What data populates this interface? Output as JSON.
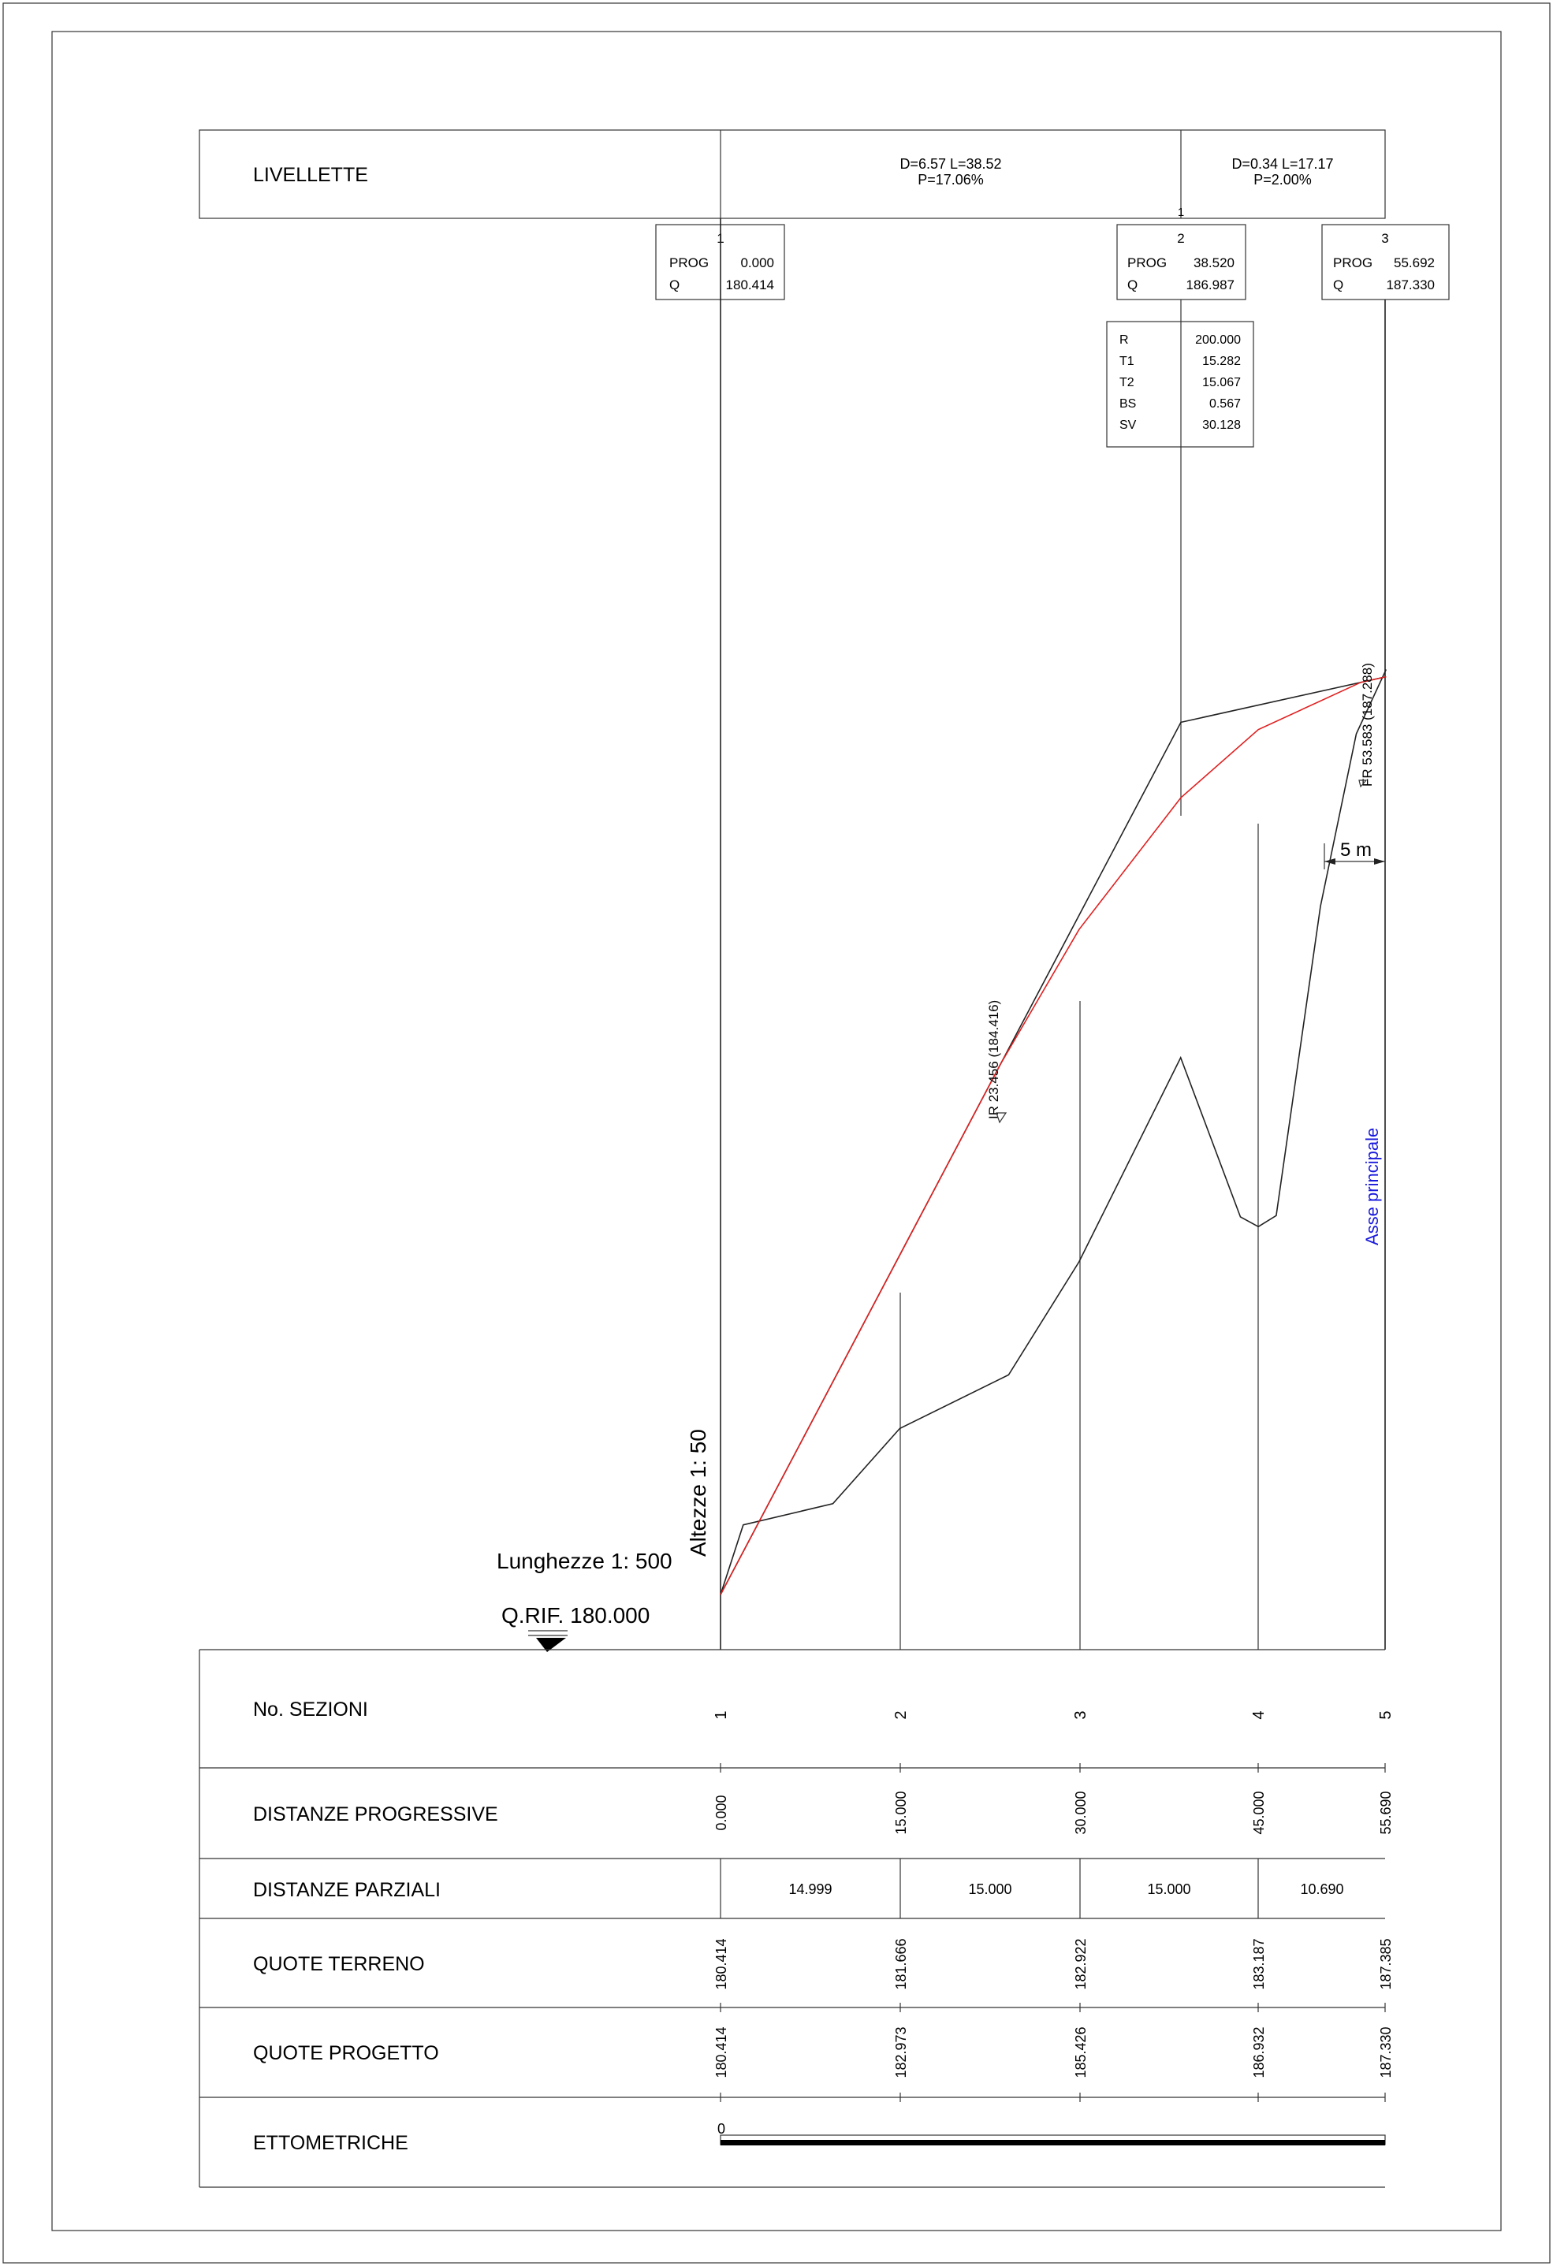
{
  "livellette": {
    "label": "LIVELLETTE",
    "segments": [
      {
        "dl": "D=6.57 L=38.52",
        "p": "P=17.06%"
      },
      {
        "dl": "D=0.34 L=17.17",
        "p": "P=2.00%"
      }
    ],
    "vertex_marker": "1"
  },
  "vertices": [
    {
      "num": "1",
      "prog_label": "PROG",
      "prog": "0.000",
      "q_label": "Q",
      "q": "180.414"
    },
    {
      "num": "2",
      "prog_label": "PROG",
      "prog": "38.520",
      "q_label": "Q",
      "q": "186.987"
    },
    {
      "num": "3",
      "prog_label": "PROG",
      "prog": "55.692",
      "q_label": "Q",
      "q": "187.330"
    }
  ],
  "curve": [
    {
      "label": "R",
      "value": "200.000"
    },
    {
      "label": "T1",
      "value": "15.282"
    },
    {
      "label": "T2",
      "value": "15.067"
    },
    {
      "label": "BS",
      "value": "0.567"
    },
    {
      "label": "SV",
      "value": "30.128"
    }
  ],
  "points": {
    "fr": "FR  53.583  (187.288)",
    "ir": "IR  23.456  (184.416)"
  },
  "scale_bar": "5 m",
  "axis_label": "Asse principale",
  "scales": {
    "heights": "Altezze 1: 50",
    "lengths": "Lunghezze 1: 500",
    "qrif": "Q.RIF. 180.000"
  },
  "table": {
    "rows": [
      {
        "label": "No. SEZIONI",
        "values": [
          "1",
          "2",
          "3",
          "4",
          "5"
        ]
      },
      {
        "label": "DISTANZE PROGRESSIVE",
        "values": [
          "0.000",
          "15.000",
          "30.000",
          "45.000",
          "55.690"
        ]
      },
      {
        "label": "DISTANZE PARZIALI",
        "values": [
          "14.999",
          "15.000",
          "15.000",
          "10.690"
        ]
      },
      {
        "label": "QUOTE TERRENO",
        "values": [
          "180.414",
          "181.666",
          "182.922",
          "183.187",
          "187.385"
        ]
      },
      {
        "label": "QUOTE PROGETTO",
        "values": [
          "180.414",
          "182.973",
          "185.426",
          "186.932",
          "187.330"
        ]
      },
      {
        "label": "ETTOMETRICHE",
        "values": [
          "0"
        ]
      }
    ]
  },
  "chart_data": {
    "type": "line",
    "xlabel": "",
    "ylabel": "",
    "x_range": [
      0,
      55.692
    ],
    "y_reference": 180.0,
    "series": [
      {
        "x": [
          0,
          1.9,
          9.4,
          15.0,
          24.1,
          30.0,
          38.5,
          43.5,
          45.0,
          46.5,
          50.2,
          53.2,
          55.69
        ],
        "y": [
          180.414,
          180.94,
          181.1,
          181.666,
          182.07,
          182.922,
          184.46,
          183.26,
          183.187,
          183.27,
          185.6,
          186.9,
          187.385
        ]
      },
      {
        "x": [
          0,
          38.52,
          55.692
        ],
        "y": [
          180.414,
          186.987,
          187.33
        ]
      },
      {
        "x": [
          0,
          15.0,
          23.456,
          30.0,
          38.52,
          45.0,
          53.583,
          55.692
        ],
        "y": [
          180.414,
          182.973,
          184.416,
          185.426,
          186.419,
          186.932,
          187.288,
          187.33
        ]
      }
    ]
  }
}
